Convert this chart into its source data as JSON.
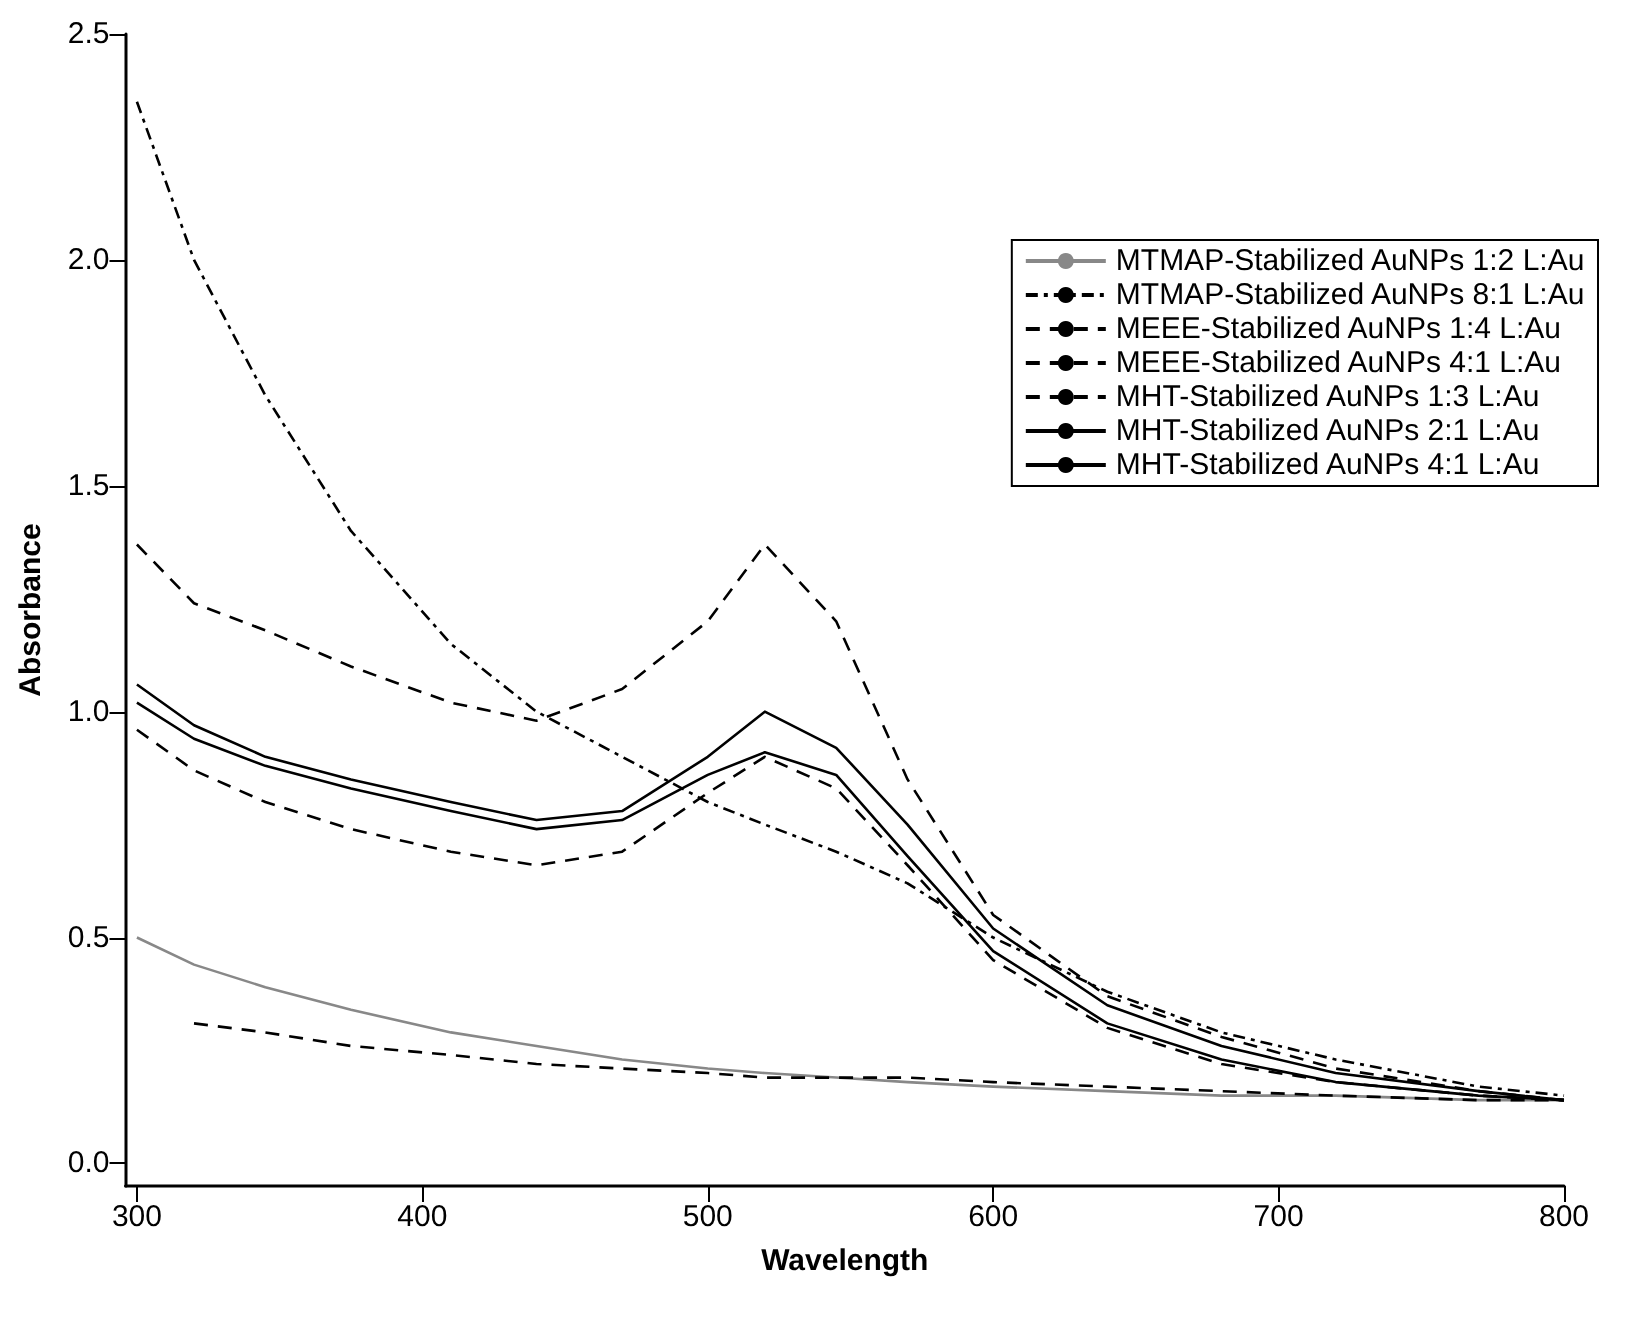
{
  "chart_data": {
    "type": "line",
    "xlabel": "Wavelength",
    "ylabel": "Absorbance",
    "xlim": [
      296,
      800
    ],
    "xticks": [
      300,
      400,
      500,
      600,
      700,
      800
    ],
    "ylim": [
      -0.05,
      2.5
    ],
    "yticks": [
      {
        "value": 0,
        "label": "0.0"
      },
      {
        "value": 0.5,
        "label": "0.5"
      },
      {
        "value": 1,
        "label": "1.0"
      },
      {
        "value": 1.5,
        "label": "1.5"
      },
      {
        "value": 2,
        "label": "2.0"
      },
      {
        "value": 2.5,
        "label": "2.5"
      }
    ],
    "grid": false,
    "legend": "top right",
    "marker": "none",
    "x": [
      300,
      320,
      345,
      375,
      410,
      440,
      470,
      500,
      520,
      545,
      570,
      600,
      640,
      680,
      720,
      770,
      800
    ],
    "series": [
      {
        "name": "MTMAP-Stabilized AuNPs 1:2 L:Au",
        "color": "#888888",
        "line_style": "solid",
        "values": [
          0.5,
          0.44,
          0.39,
          0.34,
          0.29,
          0.26,
          0.23,
          0.21,
          0.2,
          0.19,
          0.18,
          0.17,
          0.16,
          0.15,
          0.15,
          0.14,
          0.14
        ]
      },
      {
        "name": "MTMAP-Stabilized AuNPs 8:1 L:Au",
        "color": "#000000",
        "line_style": "dotted",
        "values": [
          2.35,
          2.0,
          1.7,
          1.4,
          1.15,
          1.0,
          0.9,
          0.8,
          0.75,
          0.69,
          0.62,
          0.5,
          0.38,
          0.29,
          0.23,
          0.17,
          0.15
        ]
      },
      {
        "name": "MEEE-Stabilized AuNPs 1:4 L:Au",
        "color": "#000000",
        "line_style": "dashed",
        "values": [
          0.96,
          0.87,
          0.8,
          0.74,
          0.69,
          0.66,
          0.69,
          0.82,
          0.9,
          0.83,
          0.66,
          0.45,
          0.3,
          0.22,
          0.18,
          0.15,
          0.14
        ]
      },
      {
        "name": "MEEE-Stabilized AuNPs 4:1 L:Au",
        "color": "#000000",
        "line_style": "dashed",
        "values": [
          null,
          0.31,
          0.29,
          0.26,
          0.24,
          0.22,
          0.21,
          0.2,
          0.19,
          0.19,
          0.19,
          0.18,
          0.17,
          0.16,
          0.15,
          0.14,
          0.14
        ]
      },
      {
        "name": "MHT-Stabilized AuNPs 1:3 L:Au",
        "color": "#000000",
        "line_style": "dashed",
        "values": [
          1.37,
          1.24,
          1.18,
          1.1,
          1.02,
          0.98,
          1.05,
          1.2,
          1.37,
          1.2,
          0.85,
          0.55,
          0.37,
          0.28,
          0.21,
          0.16,
          0.14
        ]
      },
      {
        "name": "MHT-Stabilized AuNPs 2:1 L:Au",
        "color": "#000000",
        "line_style": "solid",
        "values": [
          1.06,
          0.97,
          0.9,
          0.85,
          0.8,
          0.76,
          0.78,
          0.9,
          1.0,
          0.92,
          0.75,
          0.52,
          0.35,
          0.26,
          0.2,
          0.16,
          0.14
        ]
      },
      {
        "name": "MHT-Stabilized AuNPs 4:1 L:Au",
        "color": "#000000",
        "line_style": "solid",
        "values": [
          1.02,
          0.94,
          0.88,
          0.83,
          0.78,
          0.74,
          0.76,
          0.86,
          0.91,
          0.86,
          0.68,
          0.47,
          0.31,
          0.23,
          0.18,
          0.15,
          0.14
        ]
      }
    ]
  }
}
